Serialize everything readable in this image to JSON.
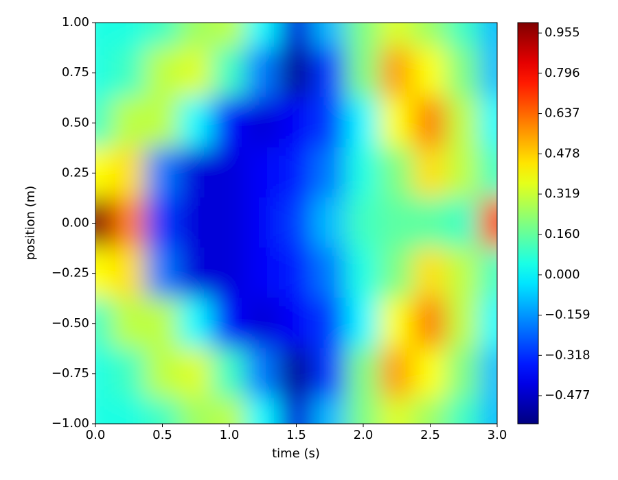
{
  "chart_data": {
    "type": "heatmap",
    "xlabel": "time (s)",
    "ylabel": "position (m)",
    "x": [
      0,
      0.25,
      0.5,
      0.75,
      1.0,
      1.25,
      1.5,
      1.75,
      2.0,
      2.25,
      2.5,
      2.75,
      3.0
    ],
    "y": [
      1.0,
      0.75,
      0.5,
      0.25,
      0,
      -0.25,
      -0.5,
      -0.75,
      -1.0
    ],
    "z": [
      [
        0.05,
        0.05,
        0.1,
        0.25,
        0.3,
        0,
        -0.45,
        -0.1,
        0.2,
        0.35,
        0.25,
        0.1,
        -0.1
      ],
      [
        0.05,
        0.1,
        0.3,
        0.35,
        0.1,
        -0.2,
        -0.55,
        -0.3,
        0.2,
        0.55,
        0.4,
        0.2,
        -0.1
      ],
      [
        0.1,
        0.3,
        0.3,
        0,
        -0.4,
        -0.45,
        -0.4,
        -0.3,
        0,
        0.4,
        0.6,
        0.3,
        0
      ],
      [
        0.4,
        0.45,
        -0.2,
        -0.45,
        -0.45,
        -0.4,
        -0.35,
        -0.2,
        0.05,
        0.2,
        0.45,
        0.3,
        0.1
      ],
      [
        1.0,
        0.6,
        -0.3,
        -0.45,
        -0.45,
        -0.4,
        -0.3,
        -0.1,
        0.1,
        0.15,
        0.15,
        0.1,
        0.7
      ],
      [
        0.4,
        0.45,
        -0.2,
        -0.45,
        -0.45,
        -0.4,
        -0.35,
        -0.2,
        0.05,
        0.2,
        0.45,
        0.3,
        0.1
      ],
      [
        0.1,
        0.3,
        0.3,
        0,
        -0.4,
        -0.45,
        -0.4,
        -0.3,
        0,
        0.4,
        0.6,
        0.3,
        0
      ],
      [
        0.05,
        0.1,
        0.3,
        0.35,
        0.1,
        -0.2,
        -0.55,
        -0.3,
        0.2,
        0.55,
        0.4,
        0.2,
        -0.1
      ],
      [
        0.05,
        0.05,
        0.1,
        0.25,
        0.3,
        0,
        -0.45,
        -0.1,
        0.2,
        0.35,
        0.25,
        0.1,
        -0.1
      ]
    ],
    "colormap": "jet",
    "xlim": [
      0,
      3
    ],
    "ylim": [
      -1,
      1
    ],
    "clim": [
      -0.588,
      0.996
    ],
    "xticks": [
      {
        "value": 0,
        "label": "0.0"
      },
      {
        "value": 0.5,
        "label": "0.5"
      },
      {
        "value": 1,
        "label": "1.0"
      },
      {
        "value": 1.5,
        "label": "1.5"
      },
      {
        "value": 2,
        "label": "2.0"
      },
      {
        "value": 2.5,
        "label": "2.5"
      },
      {
        "value": 3,
        "label": "3.0"
      }
    ],
    "yticks": [
      {
        "value": -1,
        "label": "−1.00"
      },
      {
        "value": -0.75,
        "label": "−0.75"
      },
      {
        "value": -0.5,
        "label": "−0.50"
      },
      {
        "value": -0.25,
        "label": "−0.25"
      },
      {
        "value": 0,
        "label": "0.00"
      },
      {
        "value": 0.25,
        "label": "0.25"
      },
      {
        "value": 0.5,
        "label": "0.50"
      },
      {
        "value": 0.75,
        "label": "0.75"
      },
      {
        "value": 1,
        "label": "1.00"
      }
    ],
    "cticks": [
      {
        "value": -0.477,
        "label": "−0.477"
      },
      {
        "value": -0.318,
        "label": "−0.318"
      },
      {
        "value": -0.159,
        "label": "−0.159"
      },
      {
        "value": 0,
        "label": "0.000"
      },
      {
        "value": 0.16,
        "label": "0.160"
      },
      0.319,
      0.478,
      0.637,
      0.796,
      0.955
    ]
  }
}
